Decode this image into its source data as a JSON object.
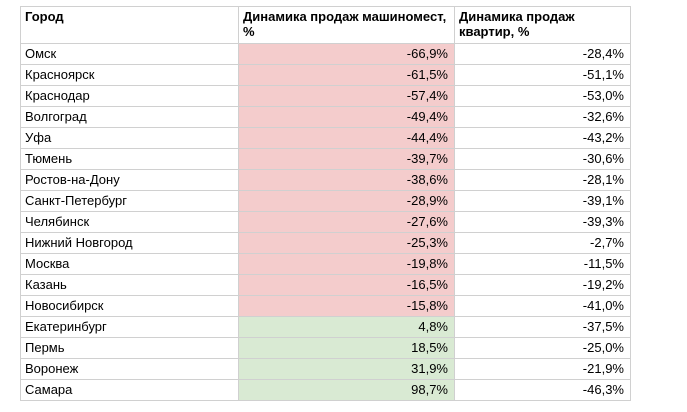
{
  "table": {
    "headers": {
      "city": "Город",
      "parking": "Динамика продаж машиномест, %",
      "flats": "Динамика продаж квартир, %"
    },
    "colors": {
      "negative_fill": "#f4cccc",
      "positive_fill": "#d9ead3",
      "grid": "#d0d0d0"
    },
    "rows": [
      {
        "city": "Омск",
        "parking": "-66,9%",
        "flats": "-28,4%",
        "parking_sign": "neg"
      },
      {
        "city": "Красноярск",
        "parking": "-61,5%",
        "flats": "-51,1%",
        "parking_sign": "neg"
      },
      {
        "city": "Краснодар",
        "parking": "-57,4%",
        "flats": "-53,0%",
        "parking_sign": "neg"
      },
      {
        "city": "Волгоград",
        "parking": "-49,4%",
        "flats": "-32,6%",
        "parking_sign": "neg"
      },
      {
        "city": "Уфа",
        "parking": "-44,4%",
        "flats": "-43,2%",
        "parking_sign": "neg"
      },
      {
        "city": "Тюмень",
        "parking": "-39,7%",
        "flats": "-30,6%",
        "parking_sign": "neg"
      },
      {
        "city": "Ростов-на-Дону",
        "parking": "-38,6%",
        "flats": "-28,1%",
        "parking_sign": "neg"
      },
      {
        "city": "Санкт-Петербург",
        "parking": "-28,9%",
        "flats": "-39,1%",
        "parking_sign": "neg"
      },
      {
        "city": "Челябинск",
        "parking": "-27,6%",
        "flats": "-39,3%",
        "parking_sign": "neg"
      },
      {
        "city": "Нижний Новгород",
        "parking": "-25,3%",
        "flats": "-2,7%",
        "parking_sign": "neg"
      },
      {
        "city": "Москва",
        "parking": "-19,8%",
        "flats": "-11,5%",
        "parking_sign": "neg"
      },
      {
        "city": "Казань",
        "parking": "-16,5%",
        "flats": "-19,2%",
        "parking_sign": "neg"
      },
      {
        "city": "Новосибирск",
        "parking": "-15,8%",
        "flats": "-41,0%",
        "parking_sign": "neg"
      },
      {
        "city": "Екатеринбург",
        "parking": "4,8%",
        "flats": "-37,5%",
        "parking_sign": "pos"
      },
      {
        "city": "Пермь",
        "parking": "18,5%",
        "flats": "-25,0%",
        "parking_sign": "pos"
      },
      {
        "city": "Воронеж",
        "parking": "31,9%",
        "flats": "-21,9%",
        "parking_sign": "pos"
      },
      {
        "city": "Самара",
        "parking": "98,7%",
        "flats": "-46,3%",
        "parking_sign": "pos"
      }
    ]
  }
}
